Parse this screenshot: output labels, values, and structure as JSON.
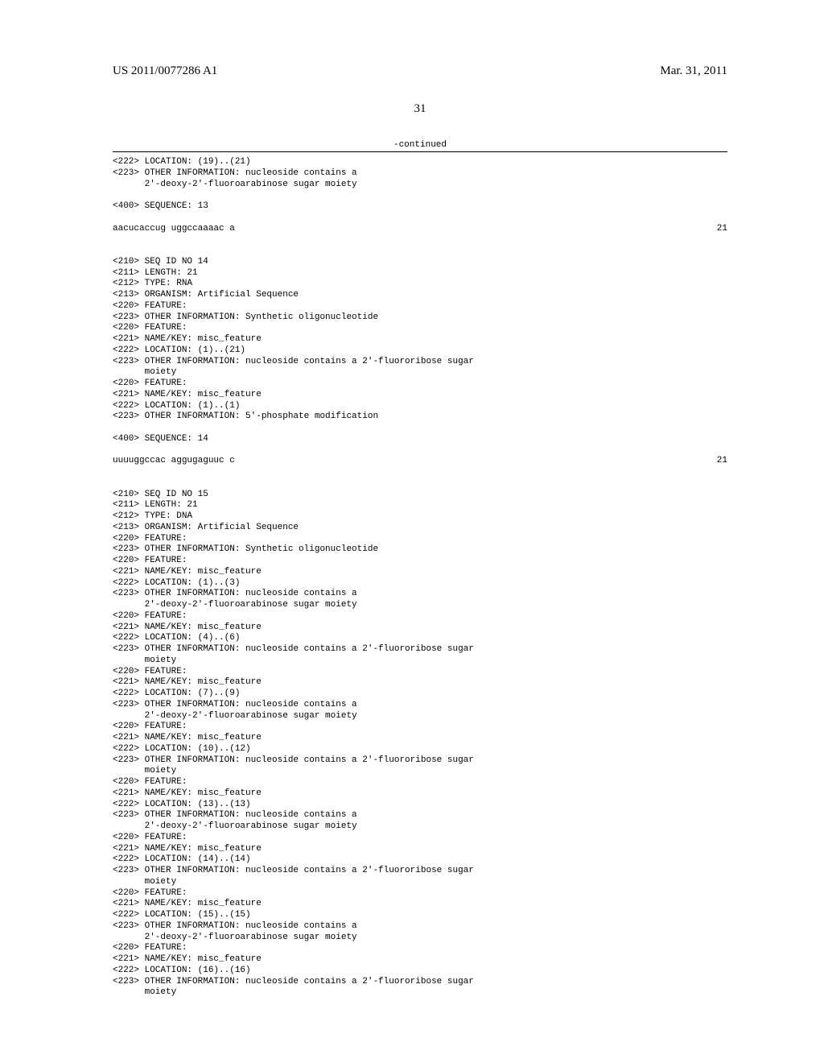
{
  "header": {
    "pub_number": "US 2011/0077286 A1",
    "pub_date": "Mar. 31, 2011"
  },
  "page_number": "31",
  "continued_label": "-continued",
  "body_lines": [
    "<222> LOCATION: (19)..(21)",
    "<223> OTHER INFORMATION: nucleoside contains a",
    "      2'-deoxy-2'-fluoroarabinose sugar moiety",
    "",
    "<400> SEQUENCE: 13",
    ""
  ],
  "seq13": {
    "text": "aacucaccug uggccaaaac a",
    "len": "21"
  },
  "body_lines2": [
    "",
    "",
    "<210> SEQ ID NO 14",
    "<211> LENGTH: 21",
    "<212> TYPE: RNA",
    "<213> ORGANISM: Artificial Sequence",
    "<220> FEATURE:",
    "<223> OTHER INFORMATION: Synthetic oligonucleotide",
    "<220> FEATURE:",
    "<221> NAME/KEY: misc_feature",
    "<222> LOCATION: (1)..(21)",
    "<223> OTHER INFORMATION: nucleoside contains a 2'-fluororibose sugar",
    "      moiety",
    "<220> FEATURE:",
    "<221> NAME/KEY: misc_feature",
    "<222> LOCATION: (1)..(1)",
    "<223> OTHER INFORMATION: 5'-phosphate modification",
    "",
    "<400> SEQUENCE: 14",
    ""
  ],
  "seq14": {
    "text": "uuuuggccac aggugaguuc c",
    "len": "21"
  },
  "body_lines3": [
    "",
    "",
    "<210> SEQ ID NO 15",
    "<211> LENGTH: 21",
    "<212> TYPE: DNA",
    "<213> ORGANISM: Artificial Sequence",
    "<220> FEATURE:",
    "<223> OTHER INFORMATION: Synthetic oligonucleotide",
    "<220> FEATURE:",
    "<221> NAME/KEY: misc_feature",
    "<222> LOCATION: (1)..(3)",
    "<223> OTHER INFORMATION: nucleoside contains a",
    "      2'-deoxy-2'-fluoroarabinose sugar moiety",
    "<220> FEATURE:",
    "<221> NAME/KEY: misc_feature",
    "<222> LOCATION: (4)..(6)",
    "<223> OTHER INFORMATION: nucleoside contains a 2'-fluororibose sugar",
    "      moiety",
    "<220> FEATURE:",
    "<221> NAME/KEY: misc_feature",
    "<222> LOCATION: (7)..(9)",
    "<223> OTHER INFORMATION: nucleoside contains a",
    "      2'-deoxy-2'-fluoroarabinose sugar moiety",
    "<220> FEATURE:",
    "<221> NAME/KEY: misc_feature",
    "<222> LOCATION: (10)..(12)",
    "<223> OTHER INFORMATION: nucleoside contains a 2'-fluororibose sugar",
    "      moiety",
    "<220> FEATURE:",
    "<221> NAME/KEY: misc_feature",
    "<222> LOCATION: (13)..(13)",
    "<223> OTHER INFORMATION: nucleoside contains a",
    "      2'-deoxy-2'-fluoroarabinose sugar moiety",
    "<220> FEATURE:",
    "<221> NAME/KEY: misc_feature",
    "<222> LOCATION: (14)..(14)",
    "<223> OTHER INFORMATION: nucleoside contains a 2'-fluororibose sugar",
    "      moiety",
    "<220> FEATURE:",
    "<221> NAME/KEY: misc_feature",
    "<222> LOCATION: (15)..(15)",
    "<223> OTHER INFORMATION: nucleoside contains a",
    "      2'-deoxy-2'-fluoroarabinose sugar moiety",
    "<220> FEATURE:",
    "<221> NAME/KEY: misc_feature",
    "<222> LOCATION: (16)..(16)",
    "<223> OTHER INFORMATION: nucleoside contains a 2'-fluororibose sugar",
    "      moiety"
  ]
}
